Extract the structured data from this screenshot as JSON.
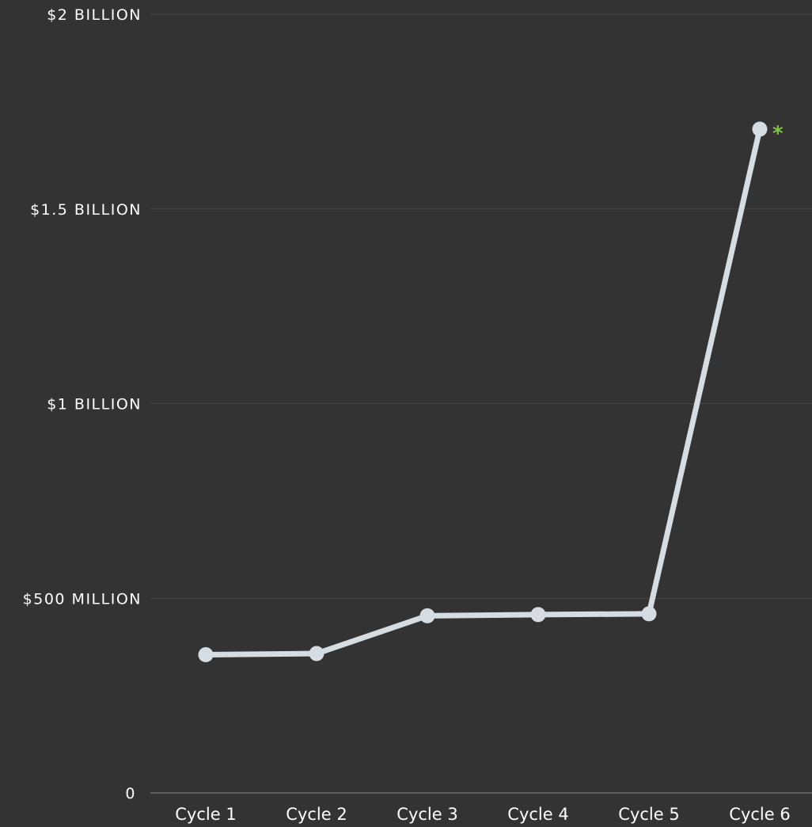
{
  "chart_data": {
    "type": "line",
    "categories": [
      "Cycle 1",
      "Cycle 2",
      "Cycle 3",
      "Cycle 4",
      "Cycle 5",
      "Cycle 6"
    ],
    "series": [
      {
        "values": [
          355000000,
          358000000,
          455000000,
          458000000,
          460000000,
          1705000000
        ]
      }
    ],
    "y_ticks": [
      {
        "value": 0,
        "label": "0"
      },
      {
        "value": 500000000,
        "label": "$500 MILLION"
      },
      {
        "value": 1000000000,
        "label": "$1 BILLION"
      },
      {
        "value": 1500000000,
        "label": "$1.5 BILLION"
      },
      {
        "value": 2000000000,
        "label": "$2 BILLION"
      }
    ],
    "ylim": [
      0,
      2000000000
    ],
    "grid": true,
    "annotations": [
      {
        "category": "Cycle 6",
        "text": "*"
      }
    ],
    "colors": {
      "background": "#333333",
      "line": "#d5dde3",
      "annotation": "#7dc242"
    }
  }
}
